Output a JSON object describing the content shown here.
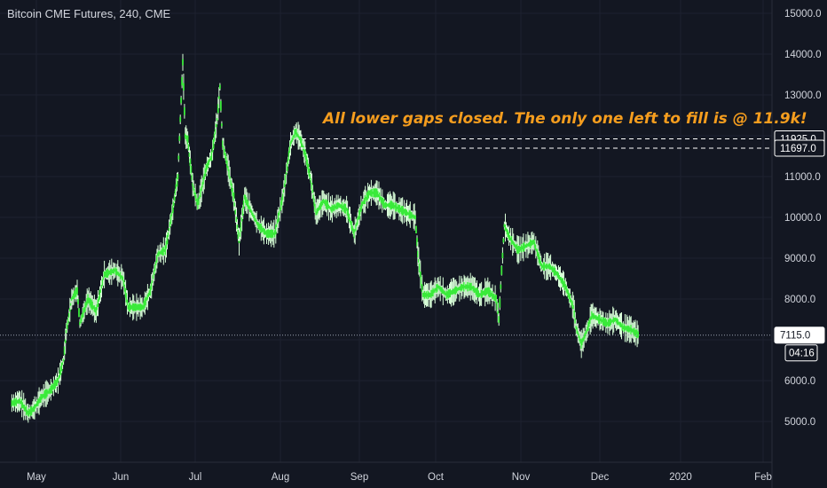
{
  "header": {
    "title": "Bitcoin CME Futures, 240, CME"
  },
  "annotation": {
    "text": "All lower gaps closed. The only one left to fill is @ 11.9k!"
  },
  "colors": {
    "background": "#131722",
    "grid": "#1e2230",
    "candle": "#3bea3b",
    "wick": "#d8ffd8",
    "annotation": "#f59d1e",
    "axis_text": "#d1d4dc"
  },
  "countdown": "04:16",
  "chart_data": {
    "type": "line",
    "title": "Bitcoin CME Futures, 240, CME",
    "xlabel": "",
    "ylabel": "",
    "x_ticks": [
      "May",
      "Jun",
      "Jul",
      "Aug",
      "Sep",
      "Oct",
      "Nov",
      "Dec",
      "2020",
      "Feb"
    ],
    "y_ticks": [
      5000.0,
      6000.0,
      7000.0,
      8000.0,
      9000.0,
      10000.0,
      11000.0,
      12000.0,
      13000.0,
      14000.0,
      15000.0
    ],
    "ylim": [
      4500,
      15300
    ],
    "grid": true,
    "series": [
      {
        "points": [
          [
            "2019-04-22",
            5450
          ],
          [
            "2019-04-25",
            5500
          ],
          [
            "2019-04-28",
            5200
          ],
          [
            "2019-04-30",
            5300
          ],
          [
            "2019-05-03",
            5600
          ],
          [
            "2019-05-06",
            5750
          ],
          [
            "2019-05-09",
            6000
          ],
          [
            "2019-05-11",
            6500
          ],
          [
            "2019-05-12",
            7200
          ],
          [
            "2019-05-14",
            8000
          ],
          [
            "2019-05-16",
            8200
          ],
          [
            "2019-05-17",
            7400
          ],
          [
            "2019-05-20",
            8000
          ],
          [
            "2019-05-23",
            7700
          ],
          [
            "2019-05-26",
            8600
          ],
          [
            "2019-05-30",
            8700
          ],
          [
            "2019-06-02",
            8500
          ],
          [
            "2019-06-04",
            7800
          ],
          [
            "2019-06-07",
            7800
          ],
          [
            "2019-06-10",
            7800
          ],
          [
            "2019-06-13",
            8200
          ],
          [
            "2019-06-16",
            9100
          ],
          [
            "2019-06-19",
            9200
          ],
          [
            "2019-06-22",
            10200
          ],
          [
            "2019-06-24",
            11000
          ],
          [
            "2019-06-26",
            13800
          ],
          [
            "2019-06-27",
            12000
          ],
          [
            "2019-06-28",
            11900
          ],
          [
            "2019-06-30",
            10800
          ],
          [
            "2019-07-02",
            10300
          ],
          [
            "2019-07-05",
            11200
          ],
          [
            "2019-07-07",
            11500
          ],
          [
            "2019-07-09",
            12400
          ],
          [
            "2019-07-10",
            13200
          ],
          [
            "2019-07-11",
            11800
          ],
          [
            "2019-07-13",
            11200
          ],
          [
            "2019-07-15",
            10500
          ],
          [
            "2019-07-17",
            9400
          ],
          [
            "2019-07-19",
            10500
          ],
          [
            "2019-07-21",
            10200
          ],
          [
            "2019-07-24",
            9800
          ],
          [
            "2019-07-27",
            9600
          ],
          [
            "2019-07-30",
            9600
          ],
          [
            "2019-08-02",
            10500
          ],
          [
            "2019-08-05",
            11800
          ],
          [
            "2019-08-07",
            12100
          ],
          [
            "2019-08-09",
            11900
          ],
          [
            "2019-08-11",
            11500
          ],
          [
            "2019-08-13",
            10900
          ],
          [
            "2019-08-15",
            10100
          ],
          [
            "2019-08-18",
            10400
          ],
          [
            "2019-08-21",
            10200
          ],
          [
            "2019-08-24",
            10300
          ],
          [
            "2019-08-27",
            10200
          ],
          [
            "2019-08-30",
            9600
          ],
          [
            "2019-09-02",
            10300
          ],
          [
            "2019-09-05",
            10600
          ],
          [
            "2019-09-08",
            10600
          ],
          [
            "2019-09-11",
            10300
          ],
          [
            "2019-09-14",
            10300
          ],
          [
            "2019-09-17",
            10200
          ],
          [
            "2019-09-20",
            10100
          ],
          [
            "2019-09-23",
            10000
          ],
          [
            "2019-09-24",
            9100
          ],
          [
            "2019-09-26",
            8100
          ],
          [
            "2019-09-29",
            8100
          ],
          [
            "2019-10-02",
            8300
          ],
          [
            "2019-10-05",
            8100
          ],
          [
            "2019-10-08",
            8200
          ],
          [
            "2019-10-11",
            8300
          ],
          [
            "2019-10-14",
            8300
          ],
          [
            "2019-10-17",
            8100
          ],
          [
            "2019-10-20",
            8200
          ],
          [
            "2019-10-23",
            8000
          ],
          [
            "2019-10-24",
            7500
          ],
          [
            "2019-10-25",
            8700
          ],
          [
            "2019-10-26",
            9800
          ],
          [
            "2019-10-28",
            9500
          ],
          [
            "2019-10-31",
            9200
          ],
          [
            "2019-11-03",
            9300
          ],
          [
            "2019-11-06",
            9400
          ],
          [
            "2019-11-09",
            8800
          ],
          [
            "2019-11-12",
            8800
          ],
          [
            "2019-11-15",
            8600
          ],
          [
            "2019-11-18",
            8300
          ],
          [
            "2019-11-21",
            7800
          ],
          [
            "2019-11-22",
            7300
          ],
          [
            "2019-11-24",
            6900
          ],
          [
            "2019-11-26",
            7200
          ],
          [
            "2019-11-28",
            7600
          ],
          [
            "2019-12-01",
            7500
          ],
          [
            "2019-12-04",
            7400
          ],
          [
            "2019-12-07",
            7500
          ],
          [
            "2019-12-10",
            7300
          ],
          [
            "2019-12-13",
            7250
          ],
          [
            "2019-12-16",
            7115
          ]
        ]
      }
    ],
    "horizontal_lines": [
      {
        "value": 11925.0,
        "label": "11925.0",
        "style": "dashed"
      },
      {
        "value": 11697.0,
        "label": "11697.0",
        "style": "dashed"
      },
      {
        "value": 7115.0,
        "label": "7115.0",
        "style": "dotted"
      }
    ],
    "price_label_order": [
      "15000.0",
      "14000.0",
      "13000.0",
      "11925.0",
      "11697.0",
      "11000.0",
      "10000.0",
      "9000.0",
      "8000.0",
      "7115.0",
      "6000.0",
      "5000.0"
    ]
  }
}
